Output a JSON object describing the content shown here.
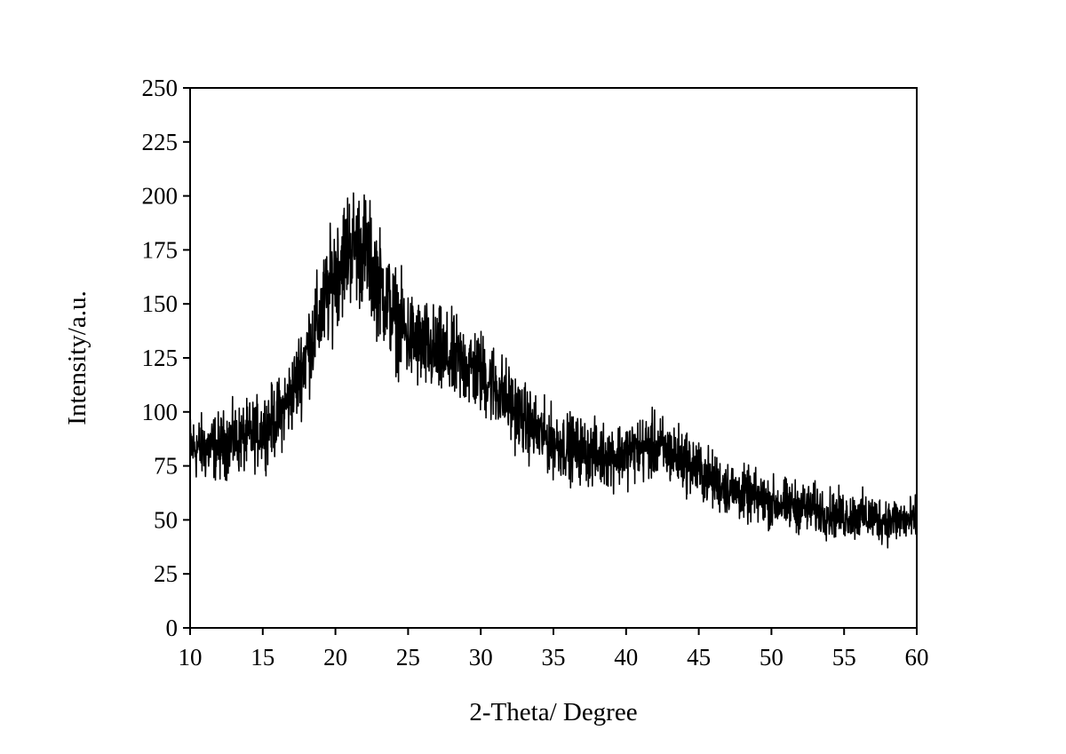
{
  "chart_data": {
    "type": "line",
    "title": "",
    "xlabel": "2-Theta/ Degree",
    "ylabel": "Intensity/a.u.",
    "xlim": [
      10,
      60
    ],
    "ylim": [
      0,
      250
    ],
    "xticks": [
      10,
      15,
      20,
      25,
      30,
      35,
      40,
      45,
      50,
      55,
      60
    ],
    "yticks": [
      0,
      25,
      50,
      75,
      100,
      125,
      150,
      175,
      200,
      225,
      250
    ],
    "grid": false,
    "legend": "none",
    "line_color": "#000000",
    "series": [
      {
        "x": [
          10,
          11,
          12,
          13,
          14,
          15,
          16,
          17,
          18,
          19,
          20,
          21,
          22,
          23,
          24,
          25,
          26,
          27,
          28,
          29,
          30,
          31,
          32,
          33,
          34,
          35,
          36,
          37,
          38,
          39,
          40,
          41,
          42,
          43,
          44,
          45,
          46,
          47,
          48,
          49,
          50,
          51,
          52,
          53,
          54,
          55,
          56,
          57,
          58,
          59,
          60
        ],
        "values": [
          84,
          83,
          84,
          87,
          88,
          92,
          97,
          108,
          127,
          145,
          165,
          178,
          175,
          160,
          145,
          135,
          130,
          127,
          124,
          122,
          118,
          112,
          104,
          96,
          90,
          86,
          84,
          82,
          80,
          80,
          81,
          83,
          84,
          81,
          78,
          73,
          68,
          65,
          62,
          60,
          58,
          57,
          56,
          55,
          53,
          52,
          52,
          51,
          50,
          50,
          49
        ]
      }
    ]
  }
}
